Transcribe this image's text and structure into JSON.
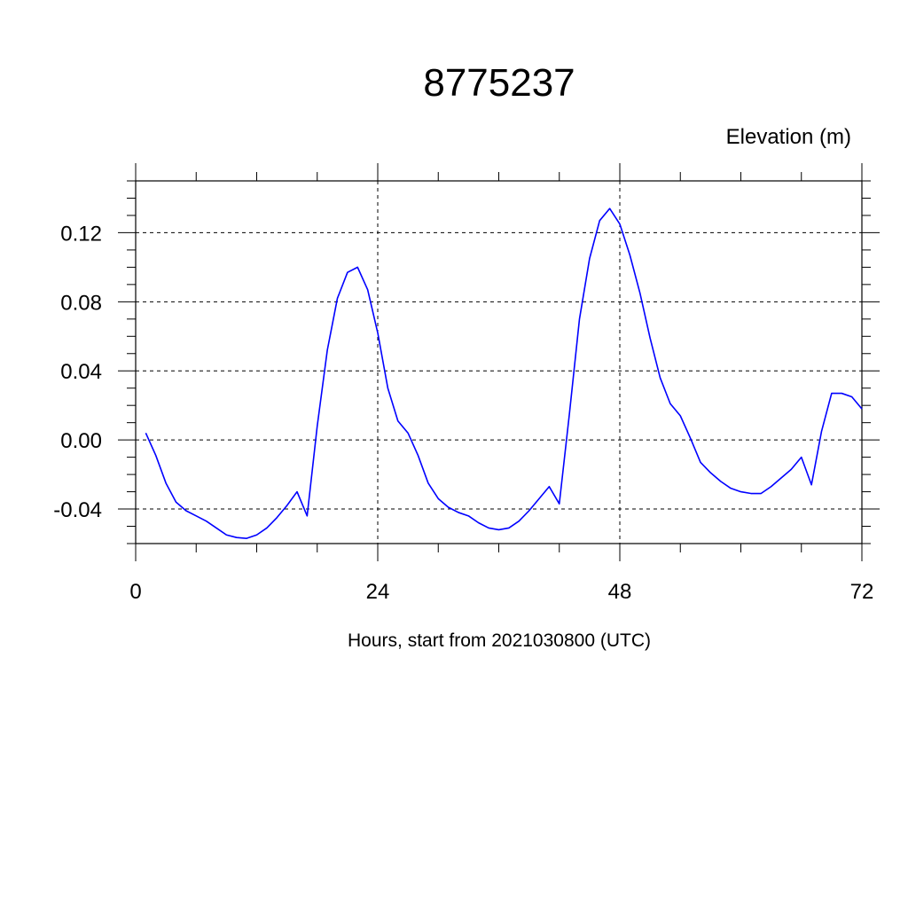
{
  "chart_data": {
    "type": "line",
    "title": "8775237",
    "ylabel": "Elevation (m)",
    "xlabel": "Hours, start from 2021030800 (UTC)",
    "xlim": [
      0,
      72
    ],
    "ylim": [
      -0.06,
      0.15
    ],
    "x_major_ticks": [
      0,
      24,
      48,
      72
    ],
    "x_tick_labels": [
      "0",
      "24",
      "48",
      "72"
    ],
    "x_minor_step": 6,
    "y_major_ticks": [
      -0.04,
      0.0,
      0.04,
      0.08,
      0.12
    ],
    "y_tick_labels": [
      "-0.04",
      "0.00",
      "0.04",
      "0.08",
      "0.12"
    ],
    "y_minor_step": 0.01,
    "grid": true,
    "series": [
      {
        "color": "#0000ff",
        "x": [
          1,
          2,
          3,
          4,
          5,
          6,
          7,
          8,
          9,
          10,
          11,
          12,
          13,
          14,
          15,
          16,
          17,
          18,
          19,
          20,
          21,
          22,
          23,
          24,
          25,
          26,
          27,
          28,
          29,
          30,
          31,
          32,
          33,
          34,
          35,
          36,
          37,
          38,
          39,
          40,
          41,
          42,
          43,
          44,
          45,
          46,
          47,
          48,
          49,
          50,
          51,
          52,
          53,
          54,
          55,
          56,
          57,
          58,
          59,
          60,
          61,
          62,
          63,
          64,
          65,
          66,
          67,
          68,
          69,
          70,
          71,
          72
        ],
        "y": [
          0.004,
          -0.009,
          -0.025,
          -0.036,
          -0.041,
          -0.044,
          -0.047,
          -0.051,
          -0.055,
          -0.0565,
          -0.057,
          -0.055,
          -0.051,
          -0.045,
          -0.038,
          -0.03,
          -0.044,
          0.008,
          0.052,
          0.082,
          0.097,
          0.1,
          0.087,
          0.062,
          0.03,
          0.011,
          0.004,
          -0.009,
          -0.025,
          -0.034,
          -0.039,
          -0.042,
          -0.044,
          -0.048,
          -0.051,
          -0.052,
          -0.051,
          -0.047,
          -0.041,
          -0.034,
          -0.027,
          -0.037,
          0.015,
          0.07,
          0.105,
          0.127,
          0.134,
          0.125,
          0.107,
          0.085,
          0.059,
          0.036,
          0.021,
          0.014,
          0.001,
          -0.013,
          -0.019,
          -0.024,
          -0.028,
          -0.03,
          -0.031,
          -0.031,
          -0.027,
          -0.022,
          -0.017,
          -0.01,
          -0.026,
          0.005,
          0.027,
          0.027,
          0.025,
          0.018
        ]
      }
    ]
  }
}
